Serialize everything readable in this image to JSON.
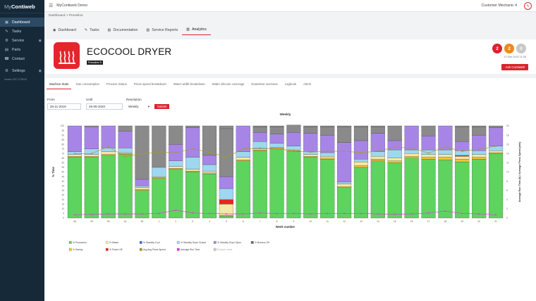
{
  "sidebar": {
    "logo_light": "My",
    "logo_bold": "Contiweb",
    "items": [
      {
        "label": "Dashboard",
        "icon": "gauge-icon",
        "glyph": "▣",
        "active": true,
        "eye": false
      },
      {
        "label": "Tasks",
        "icon": "wrench-icon",
        "glyph": "✎",
        "active": false,
        "eye": false
      },
      {
        "label": "Service",
        "icon": "gear-icon",
        "glyph": "⚙",
        "active": false,
        "eye": true
      },
      {
        "label": "Parts",
        "icon": "box-icon",
        "glyph": "▤",
        "active": false,
        "eye": false
      },
      {
        "label": "Contact",
        "icon": "phone-icon",
        "glyph": "☎",
        "active": false,
        "eye": false
      }
    ],
    "settings_label": "Settings",
    "version": "Version 2017.0795.00"
  },
  "topbar": {
    "app_name": "MyContiweb Demo",
    "user": "Customer Mechanic 4"
  },
  "breadcrumb": "Dashboard > Pressline",
  "tabs": [
    {
      "label": "Dashboard",
      "glyph": "◉"
    },
    {
      "label": "Tasks",
      "glyph": "✎"
    },
    {
      "label": "Documentation",
      "glyph": "▤"
    },
    {
      "label": "Service Reports",
      "glyph": "▧"
    },
    {
      "label": "Analytics",
      "glyph": "▥"
    }
  ],
  "product": {
    "name": "ECOCOOL DRYER",
    "tag": "Pressline 5"
  },
  "badges": [
    {
      "value": "2",
      "color": "#d9232e"
    },
    {
      "value": "2",
      "color": "#f0891a"
    },
    {
      "value": "0",
      "color": "#c8c8c8"
    }
  ],
  "date": "22 Mar 2020 11:06",
  "ask_label": "Ask Contiweb",
  "subtabs": [
    "Machine State",
    "Gas consumption",
    "Process Status",
    "Press speed breakdown",
    "Water width breakdown",
    "Water silicone coverage",
    "Downtime overview",
    "Logbook",
    "Alerts"
  ],
  "form": {
    "from_label": "From",
    "from_value": "26-11-2019",
    "until_label": "Until",
    "until_value": "26-05-2020",
    "resolution_label": "Resolution",
    "resolution_value": "Weekly",
    "submit_label": "Submit"
  },
  "chart_data": {
    "type": "bar",
    "title": "Weekly",
    "xlabel": "Week number",
    "ylabel": "% Time",
    "y2label": "Average Run Time (h) / Average Press Speed (m/s)",
    "ylim": [
      0,
      100
    ],
    "y2lim": [
      0,
      20
    ],
    "categories": [
      "48",
      "49",
      "50",
      "51",
      "52",
      "1",
      "2",
      "3",
      "4",
      "5",
      "6",
      "7",
      "8",
      "9",
      "10",
      "11",
      "12",
      "13",
      "14",
      "15",
      "16",
      "17",
      "18",
      "19",
      "20",
      "21"
    ],
    "yticks": [
      0,
      5,
      10,
      15,
      20,
      25,
      30,
      35,
      40,
      45,
      50,
      55,
      60,
      65,
      70,
      75,
      80,
      85,
      90,
      95,
      100
    ],
    "y2ticks": [
      0,
      2,
      4,
      6,
      8,
      10,
      12,
      14,
      16,
      18,
      20
    ],
    "colors": {
      "production": "#5ed35e",
      "startup": "#f0c23a",
      "waste": "#f2e9a6",
      "poweroff": "#e8261c",
      "standbycool": "#3a72d9",
      "standbydrycheck": "#9ed7f0",
      "standbydryopen": "#a785e6",
      "burnersoff": "#8a8a8a",
      "pressspeed": "#a69b2b",
      "runtime": "#e23ad9"
    },
    "series": [
      {
        "name": "% Production",
        "values": [
          66,
          66,
          68,
          69,
          30,
          43,
          53,
          50,
          48,
          2,
          62,
          73,
          75,
          72,
          66,
          64,
          33,
          55,
          62,
          60,
          65,
          64,
          63,
          61,
          64,
          70
        ]
      },
      {
        "name": "% Startup",
        "values": [
          1,
          1,
          1,
          1,
          1,
          1,
          1,
          1,
          1,
          1,
          1,
          1,
          1,
          1,
          1,
          1,
          1,
          2,
          2,
          2,
          2,
          2,
          3,
          3,
          2,
          1
        ]
      },
      {
        "name": "% Waste",
        "values": [
          2,
          2,
          3,
          1,
          2,
          1,
          2,
          2,
          2,
          12,
          3,
          1,
          1,
          1,
          2,
          2,
          3,
          4,
          3,
          3,
          3,
          3,
          3,
          3,
          3,
          2
        ]
      },
      {
        "name": "% Power Off",
        "values": [
          0,
          0,
          0,
          0,
          0,
          0,
          0,
          0,
          0,
          5,
          0,
          0,
          0,
          0,
          0,
          0,
          0,
          0,
          0,
          0,
          0,
          0,
          0,
          1,
          0,
          0
        ]
      },
      {
        "name": "% Standby Cool",
        "values": [
          0,
          0,
          0,
          0,
          0,
          0,
          0,
          0,
          0,
          0,
          0,
          0,
          0,
          0,
          0,
          0,
          0,
          0,
          0,
          0,
          0,
          0,
          0,
          0,
          0,
          0
        ]
      },
      {
        "name": "% Standby Dryer Closed",
        "values": [
          3,
          6,
          4,
          5,
          2,
          10,
          6,
          13,
          7,
          12,
          6,
          8,
          4,
          4,
          3,
          4,
          2,
          3,
          5,
          9,
          4,
          5,
          5,
          5,
          4,
          5
        ]
      },
      {
        "name": "% Standby Dryer Open",
        "values": [
          28,
          24,
          24,
          18,
          7,
          0,
          18,
          32,
          10,
          13,
          28,
          10,
          10,
          15,
          20,
          19,
          43,
          20,
          20,
          10,
          26,
          15,
          26,
          10,
          17,
          20
        ]
      },
      {
        "name": "% Burners Off",
        "values": [
          0,
          0,
          0,
          6,
          58,
          45,
          20,
          2,
          32,
          52,
          0,
          6,
          8,
          8,
          7,
          9,
          17,
          15,
          7,
          16,
          0,
          11,
          0,
          16,
          9,
          2
        ]
      }
    ],
    "press_speed": {
      "name": "Avg Press Speed",
      "values": [
        14,
        14,
        15.5,
        13.3,
        14,
        14.3,
        14.2,
        15,
        14.3,
        13.2,
        15,
        15.2,
        15,
        14.6,
        14.3,
        14.5,
        14.5,
        14.2,
        14.5,
        15.4,
        15.2,
        14.1,
        15.4,
        14.5,
        14.9,
        15.6
      ]
    },
    "run_time": {
      "name": "Average Run Time",
      "values": [
        0.7,
        0.8,
        0.9,
        0.9,
        0.9,
        1,
        1.7,
        1.1,
        1,
        0.9,
        0.9,
        1.1,
        1,
        1,
        0.9,
        1,
        1,
        1,
        0.9,
        0.8,
        0.9,
        1.1,
        1.5,
        1,
        0.9,
        0.7
      ]
    },
    "legend": [
      "% Production",
      "% Waste",
      "% Standby Cool",
      "% Standby Dryer Closed",
      "% Standby Dryer Open",
      "% Burners Off",
      "% Startup",
      "% Power Off",
      "Avg Avg Press Speed",
      "Average Run Time",
      "Product Lanes"
    ],
    "legend_colors": [
      "#5ed35e",
      "#f2e9a6",
      "#3a72d9",
      "#9ed7f0",
      "#a785e6",
      "#666666",
      "#f0c23a",
      "#e8261c",
      "#a69b2b",
      "#e23ad9",
      "#cfcfcf"
    ]
  }
}
